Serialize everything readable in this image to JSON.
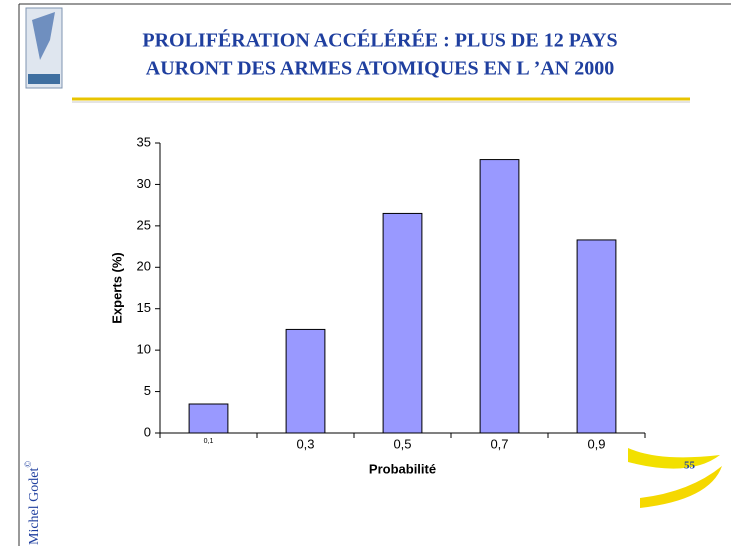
{
  "header": {
    "title_lines": [
      "PROLIFÉRATION  ACCÉLÉRÉE : PLUS DE 12 PAYS",
      "AURONT DES ARMES ATOMIQUES EN L ’AN 2000"
    ]
  },
  "chart_data": {
    "type": "bar",
    "categories": [
      "0,1",
      "0,3",
      "0,5",
      "0,7",
      "0,9"
    ],
    "values": [
      3.5,
      12.5,
      26.5,
      33,
      23.3
    ],
    "color": "#9999ff",
    "x_label": "Probabilité",
    "y_label": "Experts (%)",
    "ylim": [
      0,
      35
    ],
    "yticks": [
      0,
      5,
      10,
      15,
      20,
      25,
      30,
      35
    ],
    "grid": false
  },
  "footer": {
    "author": "Michel Godet",
    "copyright": "©",
    "page_number": "55"
  }
}
